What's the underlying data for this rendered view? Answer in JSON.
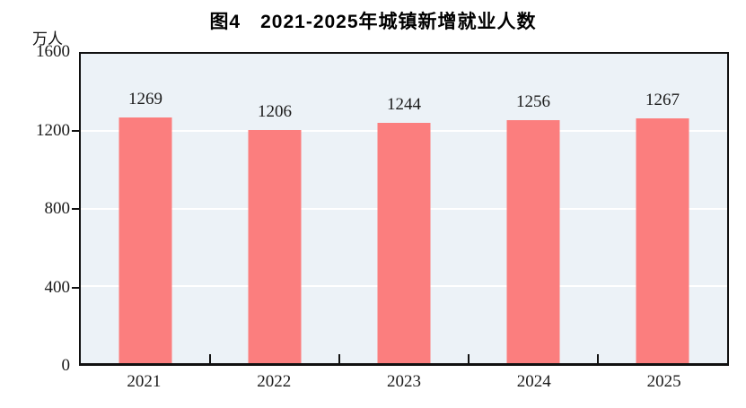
{
  "chart_data": {
    "type": "bar",
    "title": "图4　2021-2025年城镇新增就业人数",
    "unit_label": "万人",
    "categories": [
      "2021",
      "2022",
      "2023",
      "2024",
      "2025"
    ],
    "values": [
      1269,
      1206,
      1244,
      1256,
      1267
    ],
    "ylabel": "万人",
    "xlabel": "",
    "ylim": [
      0,
      1600
    ],
    "yticks": [
      0,
      400,
      800,
      1200,
      1600
    ],
    "grid": true,
    "legend": "none",
    "data_labels": true,
    "colors": {
      "bar": "#FB7E7E",
      "plot_background": "#ECF2F7",
      "gridline": "#FFFFFF",
      "axis": "#111111",
      "text": "#1A1A1A"
    }
  }
}
